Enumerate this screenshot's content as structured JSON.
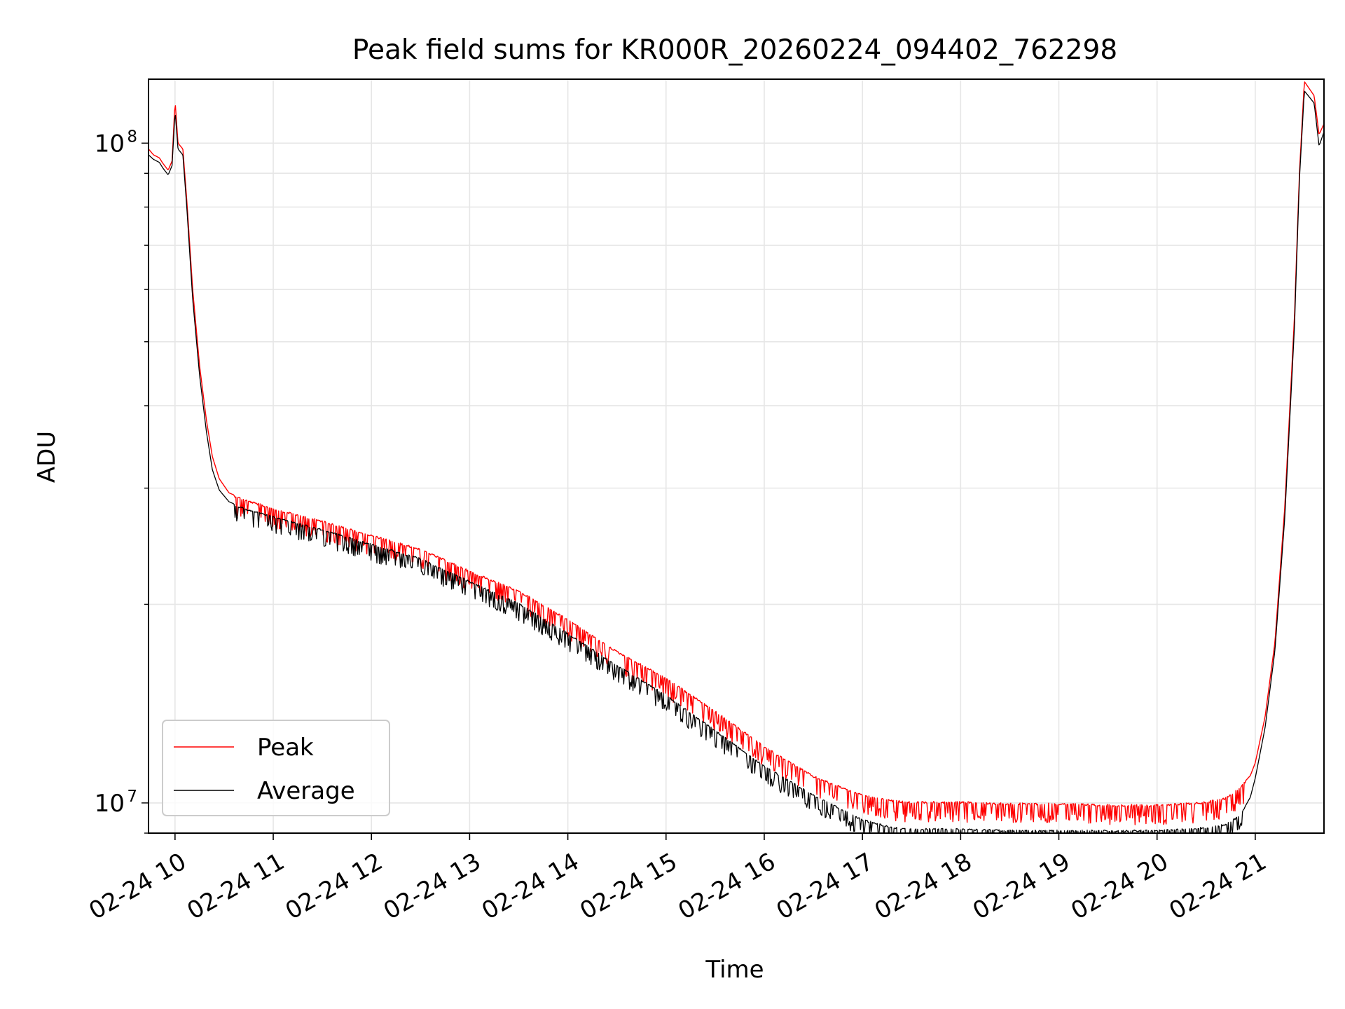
{
  "chart_data": {
    "type": "line",
    "title": "Peak field sums for KR000R_20260224_094402_762298",
    "xlabel": "Time",
    "ylabel": "ADU",
    "yscale": "log",
    "ylim": [
      9000000,
      125000000
    ],
    "xlim_hours": [
      9.73,
      21.7
    ],
    "grid": true,
    "legend_position": "lower-left",
    "x_ticks": [
      {
        "hour": 10,
        "label": "02-24 10"
      },
      {
        "hour": 11,
        "label": "02-24 11"
      },
      {
        "hour": 12,
        "label": "02-24 12"
      },
      {
        "hour": 13,
        "label": "02-24 13"
      },
      {
        "hour": 14,
        "label": "02-24 14"
      },
      {
        "hour": 15,
        "label": "02-24 15"
      },
      {
        "hour": 16,
        "label": "02-24 16"
      },
      {
        "hour": 17,
        "label": "02-24 17"
      },
      {
        "hour": 18,
        "label": "02-24 18"
      },
      {
        "hour": 19,
        "label": "02-24 19"
      },
      {
        "hour": 20,
        "label": "02-24 20"
      },
      {
        "hour": 21,
        "label": "02-24 21"
      }
    ],
    "y_ticks": [
      {
        "value": 10000000,
        "base": "10",
        "exp": "7"
      },
      {
        "value": 100000000,
        "base": "10",
        "exp": "8"
      }
    ],
    "series": [
      {
        "name": "Peak",
        "color": "#ff0000",
        "x_hours": [
          9.73,
          9.78,
          9.84,
          9.88,
          9.93,
          9.97,
          10.0,
          10.03,
          10.08,
          10.12,
          10.18,
          10.25,
          10.32,
          10.38,
          10.45,
          10.55,
          10.7,
          11.0,
          11.5,
          12.0,
          12.5,
          13.0,
          13.5,
          14.0,
          14.5,
          15.0,
          15.5,
          16.0,
          16.5,
          17.0,
          17.3,
          17.5,
          18.0,
          18.5,
          19.0,
          19.5,
          20.0,
          20.3,
          20.5,
          20.7,
          20.85,
          20.95,
          21.0,
          21.1,
          21.2,
          21.3,
          21.4,
          21.45,
          21.5,
          21.6,
          21.65,
          21.7
        ],
        "values": [
          98000000,
          96000000,
          95000000,
          93000000,
          91000000,
          94000000,
          116000000,
          100000000,
          98000000,
          82000000,
          60000000,
          46000000,
          38000000,
          33500000,
          31000000,
          29500000,
          28900000,
          28000000,
          26800000,
          25500000,
          24300000,
          22500000,
          21000000,
          19000000,
          17000000,
          15500000,
          13800000,
          12200000,
          11000000,
          10300000,
          10100000,
          10050000,
          10050000,
          10000000,
          10000000,
          9950000,
          9950000,
          10000000,
          10050000,
          10200000,
          10600000,
          11000000,
          11500000,
          13500000,
          17500000,
          28000000,
          55000000,
          90000000,
          124000000,
          118000000,
          103000000,
          107000000
        ]
      },
      {
        "name": "Average",
        "color": "#000000",
        "x_hours": [
          9.73,
          9.78,
          9.84,
          9.88,
          9.93,
          9.97,
          10.0,
          10.03,
          10.08,
          10.12,
          10.18,
          10.25,
          10.32,
          10.38,
          10.45,
          10.55,
          10.7,
          11.0,
          11.5,
          12.0,
          12.5,
          13.0,
          13.5,
          14.0,
          14.5,
          15.0,
          15.5,
          16.0,
          16.5,
          17.0,
          17.3,
          17.5,
          18.0,
          18.5,
          19.0,
          19.5,
          20.0,
          20.3,
          20.5,
          20.7,
          20.85,
          20.95,
          21.0,
          21.1,
          21.2,
          21.3,
          21.4,
          21.45,
          21.5,
          21.6,
          21.65,
          21.7
        ],
        "values": [
          96000000,
          94500000,
          93500000,
          91500000,
          89500000,
          92500000,
          112000000,
          98000000,
          96000000,
          80000000,
          58000000,
          44500000,
          36500000,
          32000000,
          29800000,
          28600000,
          28000000,
          27200000,
          26000000,
          24700000,
          23500000,
          21700000,
          20100000,
          18100000,
          16200000,
          14600000,
          12900000,
          11400000,
          10300000,
          9450000,
          9200000,
          9150000,
          9150000,
          9100000,
          9100000,
          9100000,
          9100000,
          9150000,
          9200000,
          9300000,
          9600000,
          10200000,
          10900000,
          13000000,
          17000000,
          27000000,
          53000000,
          88000000,
          120000000,
          115000000,
          99000000,
          104000000
        ]
      }
    ]
  }
}
